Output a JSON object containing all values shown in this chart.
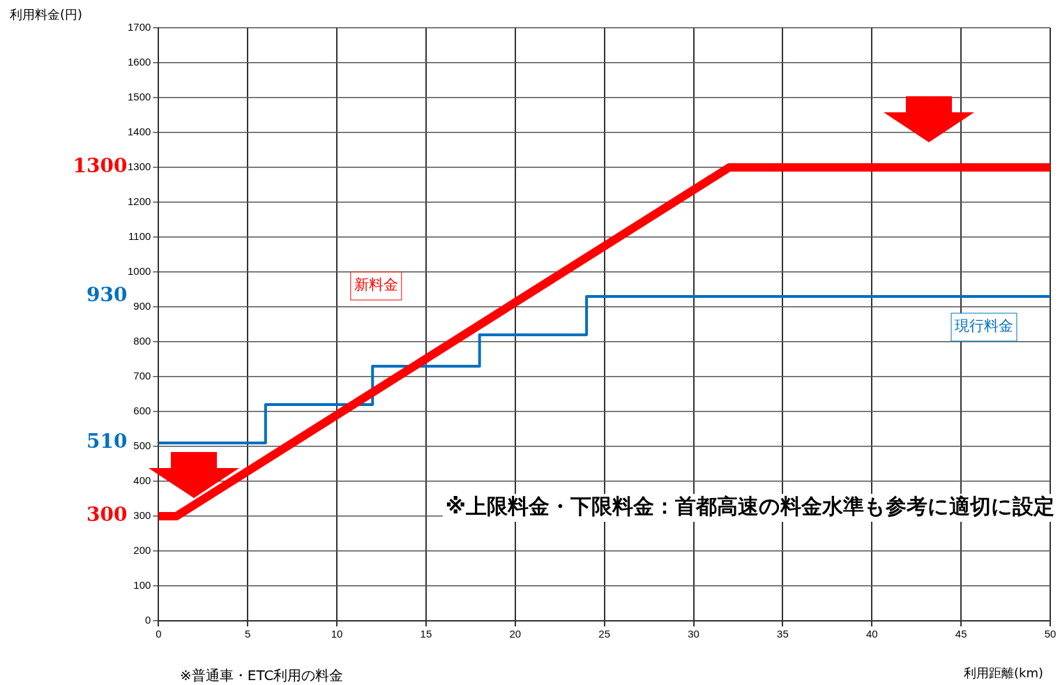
{
  "chart_data": {
    "type": "line",
    "xlabel": "利用距離(km)",
    "ylabel": "利用料金(円)",
    "xlim": [
      0,
      50
    ],
    "xticks": [
      0,
      5,
      10,
      15,
      20,
      25,
      30,
      35,
      40,
      45,
      50
    ],
    "ylim": [
      0,
      1700
    ],
    "yticks": [
      0,
      100,
      200,
      300,
      400,
      500,
      600,
      700,
      800,
      900,
      1000,
      1100,
      1200,
      1300,
      1400,
      1500,
      1600,
      1700
    ],
    "grid": true,
    "legend": false,
    "marker": "none",
    "line_style": "solid",
    "series": [
      {
        "name": "新料金",
        "type": "line",
        "color": "#ff0000",
        "x": [
          0,
          1,
          32,
          50
        ],
        "values": [
          300,
          300,
          1300,
          1300
        ]
      },
      {
        "name": "現行料金",
        "type": "step",
        "color": "#0070c0",
        "x": [
          0,
          6,
          12,
          18,
          24,
          50
        ],
        "values": [
          510,
          620,
          730,
          820,
          930,
          930
        ]
      }
    ],
    "annotations": [
      "※上限料金・下限料金：首都高速の料金水準も参考に適切に設定",
      "※普通車・ETC利用の料金",
      "1300",
      "930",
      {
        "text": "510",
        "x": 0,
        "y": 510
      },
      {
        "text": "300",
        "x": 0,
        "y": 300
      }
    ]
  }
}
